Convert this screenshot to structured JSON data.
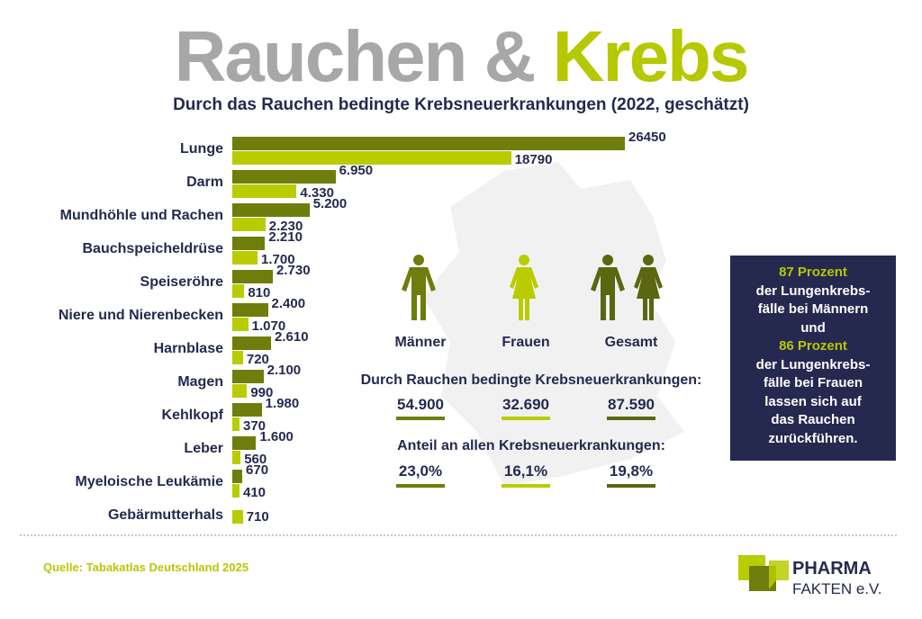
{
  "header": {
    "title_part1": "Rauchen &",
    "title_part2": "Krebs",
    "subtitle": "Durch das Rauchen bedingte Krebsneuerkrankungen (2022, geschätzt)"
  },
  "colors": {
    "men": "#6e7d0b",
    "women": "#b9cc00",
    "total": "#5a6610",
    "navy": "#25294f"
  },
  "chart_data": {
    "type": "bar",
    "orientation": "horizontal",
    "title": "Durch das Rauchen bedingte Krebsneuerkrankungen (2022, geschätzt)",
    "categories": [
      "Lunge",
      "Darm",
      "Mundhöhle und Rachen",
      "Bauchspeicheldrüse",
      "Speiseröhre",
      "Niere und Nierenbecken",
      "Harnblase",
      "Magen",
      "Kehlkopf",
      "Leber",
      "Myeloische Leukämie",
      "Gebärmutterhals"
    ],
    "series": [
      {
        "name": "Männer",
        "values": [
          26450,
          6950,
          5200,
          2210,
          2730,
          2400,
          2610,
          2100,
          1980,
          1600,
          670,
          null
        ],
        "labels": [
          "26450",
          "6.950",
          "5.200",
          "2.210",
          "2.730",
          "2.400",
          "2.610",
          "2.100",
          "1.980",
          "1.600",
          "670",
          null
        ]
      },
      {
        "name": "Frauen",
        "values": [
          18790,
          4330,
          2230,
          1700,
          810,
          1070,
          720,
          990,
          370,
          560,
          410,
          710
        ],
        "labels": [
          "18790",
          "4.330",
          "2.230",
          "1.700",
          "810",
          "1.070",
          "720",
          "990",
          "370",
          "560",
          "410",
          "710"
        ]
      }
    ],
    "xlim": [
      0,
      26450
    ]
  },
  "groups": [
    {
      "label": "Männer",
      "icon": "man-icon",
      "count": "54.900",
      "share": "23,0%"
    },
    {
      "label": "Frauen",
      "icon": "woman-icon",
      "count": "32.690",
      "share": "16,1%"
    },
    {
      "label": "Gesamt",
      "icon": "couple-icon",
      "count": "87.590",
      "share": "19,8%"
    }
  ],
  "stats": {
    "count_heading": "Durch Rauchen bedingte Krebsneuerkrankungen:",
    "share_heading": "Anteil an allen Krebsneuerkrankungen:"
  },
  "box": {
    "hl1": "87 Prozent",
    "l1": "der Lungenkrebs-",
    "l2": "fälle bei Männern",
    "l3": "und",
    "hl2": "86 Prozent",
    "l4": "der Lungenkrebs-",
    "l5": "fälle bei Frauen",
    "l6": "lassen sich auf",
    "l7": "das Rauchen",
    "l8": "zurückführen."
  },
  "footer": {
    "source": "Quelle: Tabakatlas Deutschland 2025",
    "logo_line1": "PHARMA",
    "logo_line2": "FAKTEN e.V."
  }
}
